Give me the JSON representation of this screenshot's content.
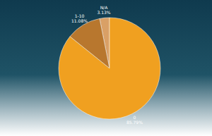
{
  "chart_data": {
    "type": "pie",
    "categories": [
      "N/A",
      "1-10",
      "0"
    ],
    "values": [
      3.13,
      11.08,
      85.79
    ],
    "value_labels": [
      "3.13%",
      "11.08%",
      "85.79%"
    ],
    "colors": [
      "#d9a066",
      "#b8772e",
      "#f0a020"
    ],
    "data_labels": true
  }
}
